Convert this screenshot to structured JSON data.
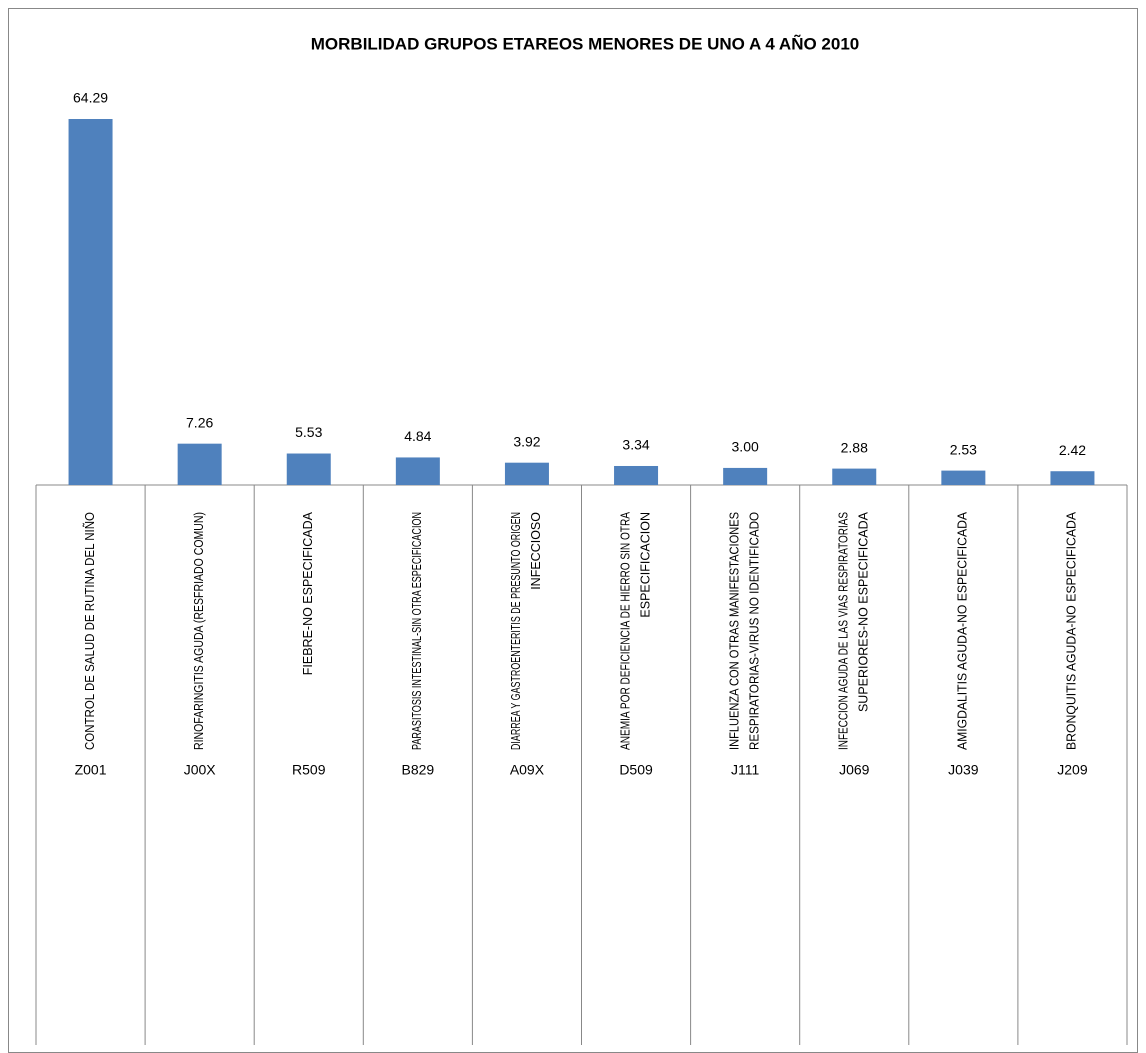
{
  "chart_data": {
    "type": "bar",
    "title": "MORBILIDAD GRUPOS ETAREOS MENORES DE UNO A 4 AÑO 2010",
    "categories": [
      "Z001",
      "J00X",
      "R509",
      "B829",
      "A09X",
      "D509",
      "J111",
      "J069",
      "J039",
      "J209"
    ],
    "descriptions": [
      [
        "CONTROL DE SALUD DE RUTINA DEL NIÑO"
      ],
      [
        "RINOFARINGITIS AGUDA (RESFRIADO COMUN)"
      ],
      [
        "FIEBRE-NO ESPECIFICADA"
      ],
      [
        "PARASITOSIS INTESTINAL-SIN OTRA ESPECIFICACION"
      ],
      [
        "DIARREA Y GASTROENTERITIS DE PRESUNTO ORIGEN",
        "INFECCIOSO"
      ],
      [
        "ANEMIA POR DEFICIENCIA DE HIERRO SIN OTRA",
        "ESPECIFICACION"
      ],
      [
        "INFLUENZA CON OTRAS MANIFESTACIONES",
        "RESPIRATORIAS-VIRUS NO IDENTIFICADO"
      ],
      [
        "INFECCION AGUDA DE LAS VIAS RESPIRATORIAS",
        "SUPERIORES-NO ESPECIFICADA"
      ],
      [
        "AMIGDALITIS AGUDA-NO ESPECIFICADA"
      ],
      [
        "BRONQUITIS AGUDA-NO ESPECIFICADA"
      ]
    ],
    "values": [
      64.29,
      7.26,
      5.53,
      4.84,
      3.92,
      3.34,
      3.0,
      2.88,
      2.53,
      2.42
    ],
    "value_labels": [
      "64.29",
      "7.26",
      "5.53",
      "4.84",
      "3.92",
      "3.34",
      "3.00",
      "2.88",
      "2.53",
      "2.42"
    ],
    "color": "#4f81bd"
  }
}
